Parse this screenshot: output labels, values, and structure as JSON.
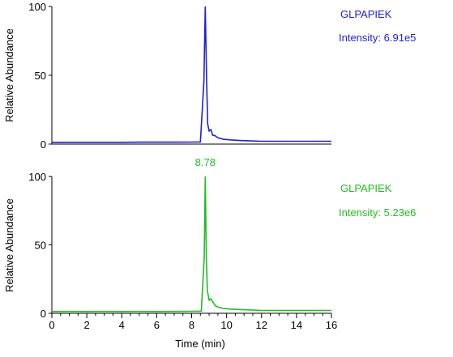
{
  "chart_data": [
    {
      "type": "line",
      "legend_title": "GLPAPIEK",
      "intensity_label": "Intensity: 6.91e5",
      "peak_label": "",
      "ylabel": "Relative Abundance",
      "xlabel": "",
      "xlim": [
        0,
        16
      ],
      "ylim": [
        0,
        100
      ],
      "y_ticks": [
        "0",
        "50",
        "100"
      ],
      "x_ticks": [],
      "color": "#1f1fd6",
      "legend_position": "top-right",
      "grid": false,
      "series": [
        {
          "x": [
            0,
            1,
            2,
            3,
            4,
            5,
            6,
            7,
            8,
            8.5,
            8.7,
            8.78,
            8.86,
            8.92,
            9.0,
            9.1,
            9.2,
            9.35,
            9.5,
            9.8,
            10.2,
            10.8,
            12,
            13,
            14,
            15,
            16
          ],
          "y": [
            0.7,
            0.7,
            0.7,
            0.7,
            0.7,
            0.8,
            0.8,
            0.8,
            0.9,
            1.0,
            45,
            100,
            45,
            14,
            9,
            10,
            6,
            5.5,
            4,
            3,
            2.5,
            2,
            1.5,
            1.5,
            1.5,
            1.5,
            1.5
          ]
        }
      ]
    },
    {
      "type": "line",
      "legend_title": "GLPAPIEK",
      "intensity_label": "Intensity: 5.23e6",
      "peak_label": "8.78",
      "ylabel": "Relative Abundance",
      "xlabel": "Time (min)",
      "xlim": [
        0,
        16
      ],
      "ylim": [
        0,
        100
      ],
      "y_ticks": [
        "0",
        "50",
        "100"
      ],
      "x_ticks": [
        "0",
        "2",
        "4",
        "6",
        "8",
        "10",
        "12",
        "14",
        "16"
      ],
      "color": "#22bb22",
      "legend_position": "top-right",
      "grid": false,
      "series": [
        {
          "x": [
            0,
            1,
            2,
            3,
            4,
            5,
            6,
            7,
            8,
            8.55,
            8.72,
            8.78,
            8.84,
            8.9,
            9.0,
            9.1,
            9.2,
            9.35,
            9.5,
            9.8,
            10.2,
            11,
            12,
            13,
            14,
            15,
            16
          ],
          "y": [
            0.7,
            0.8,
            0.7,
            0.8,
            0.7,
            0.8,
            0.7,
            0.8,
            0.9,
            1.0,
            40,
            100,
            40,
            16,
            9,
            10,
            8,
            5,
            4,
            3,
            2.5,
            2,
            1.5,
            1.5,
            1.5,
            1.5,
            1.5
          ]
        }
      ]
    }
  ]
}
